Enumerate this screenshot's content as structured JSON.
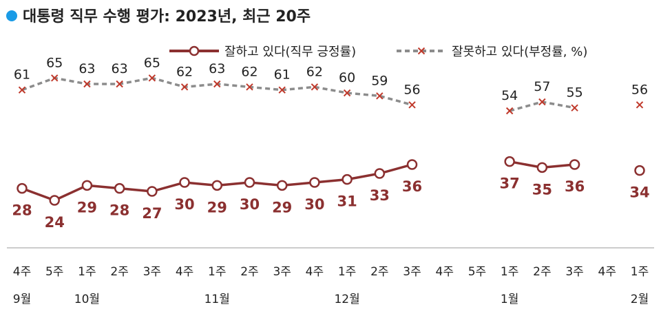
{
  "title": "대통령 직무 수행 평가: 2023년, 최근 20주",
  "colors": {
    "bullet": "#1a9be6",
    "positive": "#8b3030",
    "negative": "#8c8c8c",
    "negative_marker": "#c0392b",
    "axis": "#999999"
  },
  "chart_data": {
    "type": "line",
    "x": [
      "4주",
      "5주",
      "1주",
      "2주",
      "3주",
      "4주",
      "1주",
      "2주",
      "3주",
      "4주",
      "1주",
      "2주",
      "3주",
      "4주",
      "5주",
      "1주",
      "2주",
      "3주",
      "4주",
      "1주"
    ],
    "months": [
      {
        "label": "9월",
        "index": 0
      },
      {
        "label": "10월",
        "index": 2
      },
      {
        "label": "11월",
        "index": 6
      },
      {
        "label": "12월",
        "index": 10
      },
      {
        "label": "1월",
        "index": 15
      },
      {
        "label": "2월",
        "index": 19
      }
    ],
    "series": [
      {
        "name": "잘하고 있다(직무 긍정률)",
        "marker": "circle",
        "values": [
          28,
          24,
          29,
          28,
          27,
          30,
          29,
          30,
          29,
          30,
          31,
          33,
          36,
          null,
          null,
          37,
          35,
          36,
          null,
          34
        ]
      },
      {
        "name": "잘못하고 있다(부정률, %)",
        "marker": "x",
        "values": [
          61,
          65,
          63,
          63,
          65,
          62,
          63,
          62,
          61,
          62,
          60,
          59,
          56,
          null,
          null,
          54,
          57,
          55,
          null,
          56
        ]
      }
    ],
    "ylim": [
      15,
      75
    ],
    "legend": "top-right"
  }
}
